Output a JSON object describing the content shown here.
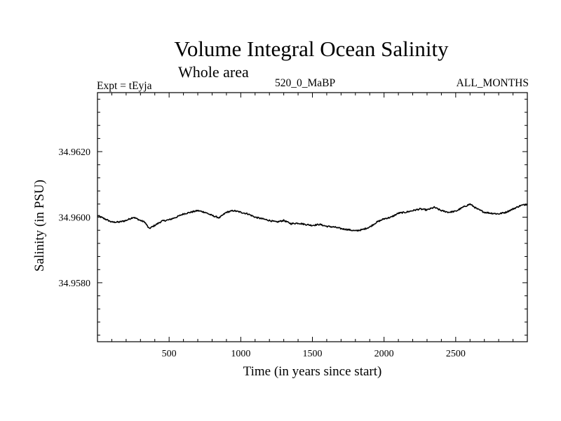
{
  "chart_data": {
    "type": "line",
    "title": "Volume Integral Ocean Salinity",
    "subtitle": "Whole area",
    "experiment_label": "Expt = tEyja",
    "period_label": "520_0_MaBP",
    "months_label": "ALL_MONTHS",
    "xlabel": "Time (in years since start)",
    "ylabel": "Salinity (in PSU)",
    "xlim": [
      0,
      3000
    ],
    "ylim": [
      34.9562,
      34.9638
    ],
    "x_ticks": [
      500,
      1000,
      1500,
      2000,
      2500
    ],
    "x_tick_labels": [
      "500",
      "1000",
      "1500",
      "2000",
      "2500"
    ],
    "y_ticks": [
      34.958,
      34.96,
      34.962
    ],
    "y_tick_labels": [
      "34.9580",
      "34.9600",
      "34.9620"
    ],
    "grid": false,
    "series": [
      {
        "name": "Salinity",
        "color": "#000000",
        "x": [
          0,
          50,
          100,
          150,
          200,
          250,
          300,
          330,
          360,
          400,
          450,
          500,
          550,
          600,
          650,
          700,
          750,
          800,
          850,
          900,
          950,
          1000,
          1050,
          1100,
          1150,
          1200,
          1250,
          1300,
          1350,
          1400,
          1450,
          1500,
          1550,
          1600,
          1650,
          1700,
          1750,
          1800,
          1850,
          1900,
          1950,
          2000,
          2050,
          2100,
          2150,
          2200,
          2250,
          2300,
          2350,
          2400,
          2450,
          2500,
          2550,
          2600,
          2650,
          2700,
          2750,
          2800,
          2850,
          2900,
          2950,
          3000
        ],
        "values": [
          34.96005,
          34.95995,
          34.95985,
          34.95985,
          34.9599,
          34.96,
          34.9599,
          34.95985,
          34.95965,
          34.95975,
          34.95988,
          34.95992,
          34.96,
          34.9601,
          34.96015,
          34.9602,
          34.96015,
          34.96005,
          34.95998,
          34.96015,
          34.9602,
          34.96015,
          34.9601,
          34.96,
          34.95995,
          34.9599,
          34.95985,
          34.9599,
          34.9598,
          34.95982,
          34.95978,
          34.95975,
          34.95978,
          34.95972,
          34.9597,
          34.95965,
          34.95962,
          34.95958,
          34.95962,
          34.9597,
          34.95985,
          34.95995,
          34.96,
          34.96012,
          34.96015,
          34.9602,
          34.96025,
          34.96022,
          34.9603,
          34.9602,
          34.96015,
          34.96018,
          34.9603,
          34.9604,
          34.96025,
          34.96015,
          34.96012,
          34.9601,
          34.96015,
          34.96025,
          34.96035,
          34.9604
        ]
      }
    ]
  }
}
